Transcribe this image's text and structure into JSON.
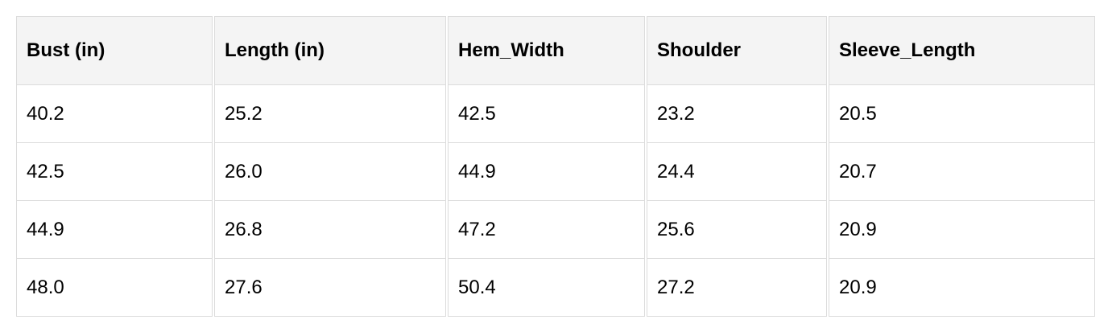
{
  "table": {
    "headers": [
      "Bust (in)",
      "Length (in)",
      "Hem_Width",
      "Shoulder",
      "Sleeve_Length"
    ],
    "rows": [
      [
        "40.2",
        "25.2",
        "42.5",
        "23.2",
        "20.5"
      ],
      [
        "42.5",
        "26.0",
        "44.9",
        "24.4",
        "20.7"
      ],
      [
        "44.9",
        "26.8",
        "47.2",
        "25.6",
        "20.9"
      ],
      [
        "48.0",
        "27.6",
        "50.4",
        "27.2",
        "20.9"
      ]
    ]
  }
}
